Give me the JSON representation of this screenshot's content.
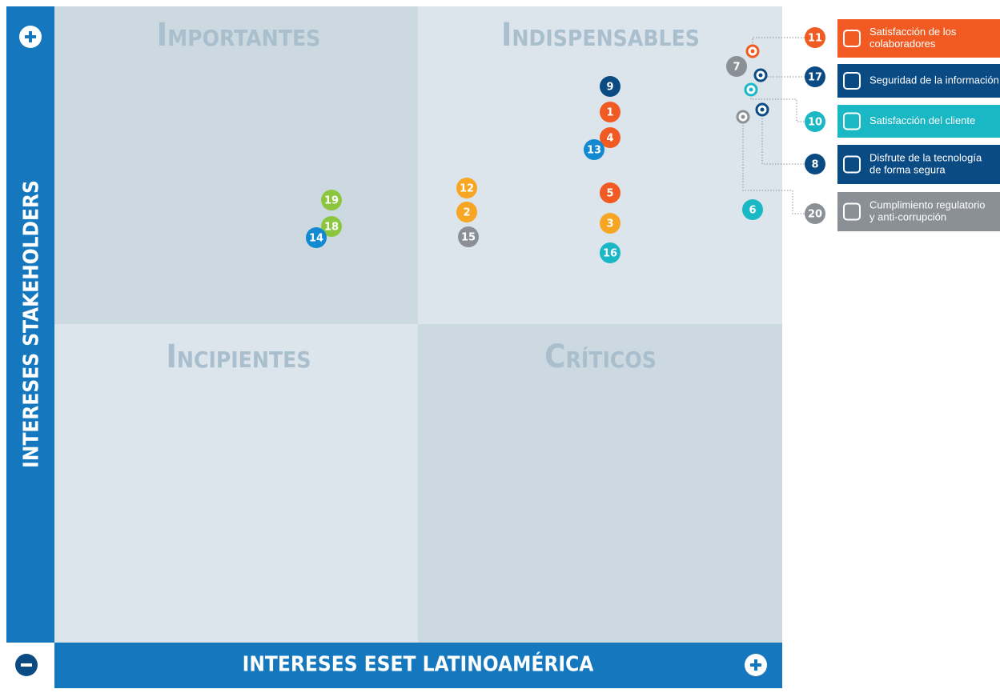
{
  "y_axis": {
    "title": "INTERESES STAKEHOLDERS"
  },
  "x_axis": {
    "title": "INTERESES ESET LATINOAMÉRICA"
  },
  "quadrants": [
    "Importantes",
    "Indispensables",
    "Incipientes",
    "Críticos"
  ],
  "nodes": [
    {
      "label": "9",
      "color": "#0b4b84"
    },
    {
      "label": "1",
      "color": "#f15a22"
    },
    {
      "label": "4",
      "color": "#f15a22"
    },
    {
      "label": "13",
      "color": "#1289d0"
    },
    {
      "label": "12",
      "color": "#f6a623"
    },
    {
      "label": "2",
      "color": "#f6a623"
    },
    {
      "label": "15",
      "color": "#8a9096"
    },
    {
      "label": "5",
      "color": "#f15a22"
    },
    {
      "label": "3",
      "color": "#f6a623"
    },
    {
      "label": "16",
      "color": "#1ab7c4"
    },
    {
      "label": "19",
      "color": "#8cc63f"
    },
    {
      "label": "18",
      "color": "#8cc63f"
    },
    {
      "label": "14",
      "color": "#1289d0"
    },
    {
      "label": "6",
      "color": "#1ab7c4"
    },
    {
      "label": "7",
      "color": "#8a9096"
    }
  ],
  "legend": [
    {
      "number": "11",
      "lines": [
        "Satisfacción de los",
        "colaboradores"
      ],
      "color": "#f15a22"
    },
    {
      "number": "17",
      "lines": [
        "Seguridad de la información"
      ],
      "color": "#0b4b84"
    },
    {
      "number": "10",
      "lines": [
        "Satisfacción del cliente"
      ],
      "color": "#1ab7c4"
    },
    {
      "number": "8",
      "lines": [
        "Disfrute de la tecnología",
        "de forma segura"
      ],
      "color": "#0b4b84"
    },
    {
      "number": "20",
      "lines": [
        "Cumplimiento regulatorio",
        "y anti-corrupción"
      ],
      "color": "#8a9096"
    }
  ]
}
